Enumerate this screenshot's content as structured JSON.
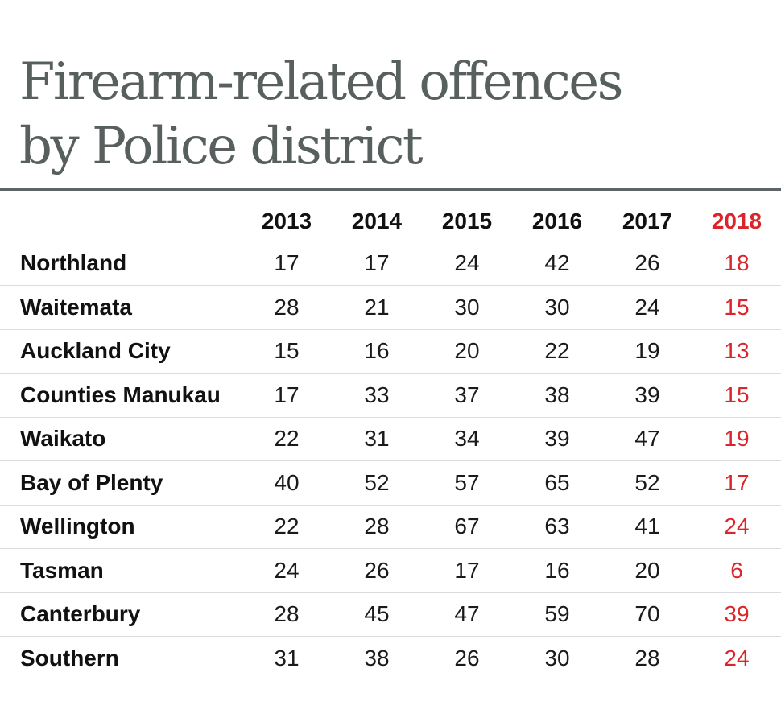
{
  "title": {
    "line1": "Firearm-related offences",
    "line2": "by Police district"
  },
  "colors": {
    "title": "#58605f",
    "rule": "#5f6566",
    "highlight": "#d9252b",
    "text": "#111111",
    "row_divider": "#dcdcdc"
  },
  "chart_data": {
    "type": "table",
    "title": "Firearm-related offences by Police district",
    "columns": [
      "2013",
      "2014",
      "2015",
      "2016",
      "2017",
      "2018"
    ],
    "highlight_column": "2018",
    "rows": [
      {
        "district": "Northland",
        "values": [
          17,
          17,
          24,
          42,
          26,
          18
        ]
      },
      {
        "district": "Waitemata",
        "values": [
          28,
          21,
          30,
          30,
          24,
          15
        ]
      },
      {
        "district": "Auckland City",
        "values": [
          15,
          16,
          20,
          22,
          19,
          13
        ]
      },
      {
        "district": "Counties Manukau",
        "values": [
          17,
          33,
          37,
          38,
          39,
          15
        ]
      },
      {
        "district": "Waikato",
        "values": [
          22,
          31,
          34,
          39,
          47,
          19
        ]
      },
      {
        "district": "Bay of Plenty",
        "values": [
          40,
          52,
          57,
          65,
          52,
          17
        ]
      },
      {
        "district": "Wellington",
        "values": [
          22,
          28,
          67,
          63,
          41,
          24
        ]
      },
      {
        "district": "Tasman",
        "values": [
          24,
          26,
          17,
          16,
          20,
          6
        ]
      },
      {
        "district": "Canterbury",
        "values": [
          28,
          45,
          47,
          59,
          70,
          39
        ]
      },
      {
        "district": "Southern",
        "values": [
          31,
          38,
          26,
          30,
          28,
          24
        ]
      }
    ]
  }
}
